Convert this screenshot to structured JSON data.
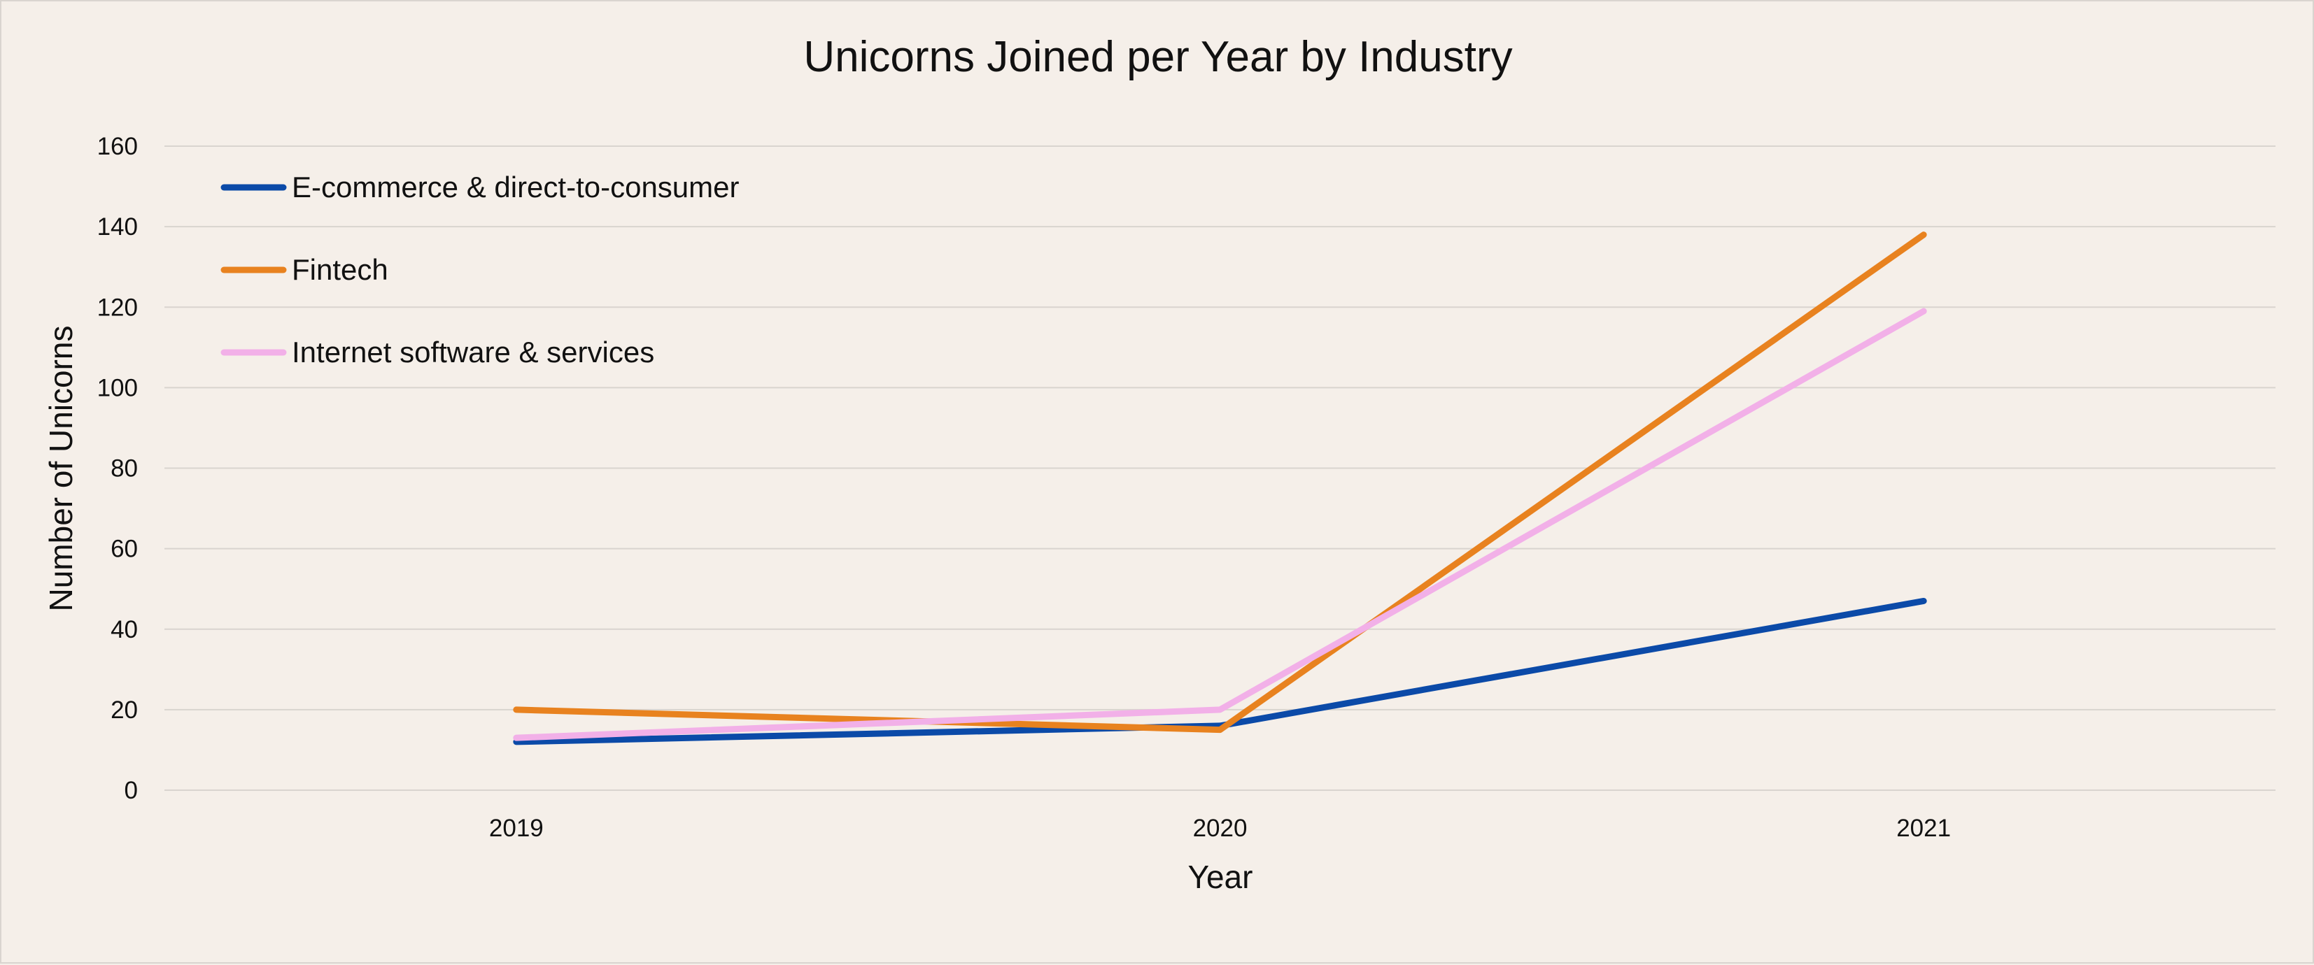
{
  "chart_data": {
    "type": "line",
    "title": "Unicorns Joined per Year by Industry",
    "xlabel": "Year",
    "ylabel": "Number of Unicorns",
    "categories": [
      "2019",
      "2020",
      "2021"
    ],
    "ylim": [
      0,
      160
    ],
    "yticks": [
      0,
      20,
      40,
      60,
      80,
      100,
      120,
      140,
      160
    ],
    "grid": true,
    "legend_position": "top-left",
    "series": [
      {
        "name": "E-commerce & direct-to-consumer",
        "values": [
          12,
          16,
          47
        ],
        "color": "#0b4aa8"
      },
      {
        "name": "Fintech",
        "values": [
          20,
          15,
          138
        ],
        "color": "#e8821f"
      },
      {
        "name": "Internet software & services",
        "values": [
          13,
          20,
          119
        ],
        "color": "#f2b0e8"
      }
    ]
  }
}
